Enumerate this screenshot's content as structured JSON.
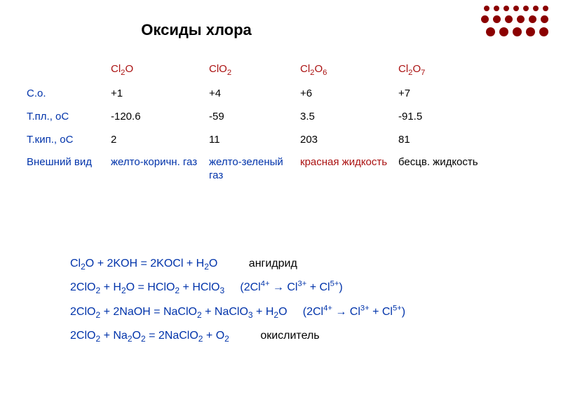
{
  "title": "Оксиды хлора",
  "deco": {
    "color": "#8b0000",
    "rows": [
      {
        "count": 7,
        "size": 8
      },
      {
        "count": 6,
        "size": 11
      },
      {
        "count": 5,
        "size": 13
      }
    ]
  },
  "table": {
    "headers": [
      "Cl2O",
      "ClO2",
      "Cl2O6",
      "Cl2O7"
    ],
    "header_subscripts": [
      [
        "2",
        ""
      ],
      [
        "",
        "2"
      ],
      [
        "2",
        "6"
      ],
      [
        "2",
        "7"
      ]
    ],
    "rowLabels": [
      "С.о.",
      "Т.пл., оС",
      "Т.кип., оС",
      "Внешний вид"
    ],
    "rows": [
      [
        "+1",
        "+4",
        "+6",
        "+7"
      ],
      [
        "-120.6",
        "-59",
        "3.5",
        "-91.5"
      ],
      [
        "2",
        "11",
        "203",
        "81"
      ],
      [
        "желто-коричн. газ",
        "желто-зеленый газ",
        "красная жидкость",
        "бесцв. жидкость"
      ]
    ],
    "rowLabelColor": "#0033aa",
    "headerColor": "#aa1111",
    "appearanceColors": [
      "#0033aa",
      "#0033aa",
      "#aa1111",
      "#000000"
    ],
    "fontsize": 15
  },
  "equations": [
    {
      "left": "Cl2O + 2KOH = 2KOCl + H2O",
      "note": "ангидрид",
      "right": ""
    },
    {
      "left": "2ClO2 + H2O = HClO2 + HClO3",
      "note": "",
      "right": "(2Cl4+ → Cl3+ + Cl5+)"
    },
    {
      "left": "2ClO2 + 2NaOH = NaClO2 + NaClO3 + H2O",
      "note": "",
      "right": "(2Cl4+ → Cl3+ + Cl5+)"
    },
    {
      "left": "2ClO2 + Na2O2 = 2NaClO2 + O2",
      "note": "окислитель",
      "right": ""
    }
  ],
  "equationLeftColor": "#0033aa",
  "equationNoteColor": "#000000",
  "equationRightColor": "#0033aa"
}
